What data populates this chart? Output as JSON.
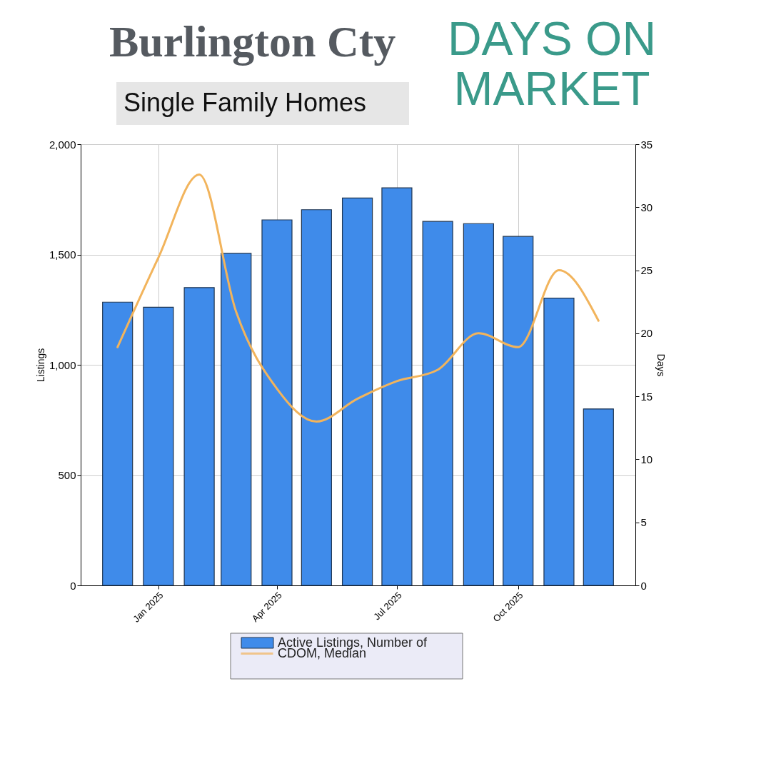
{
  "chart_data": {
    "type": "bar",
    "title": "Burlington Cty",
    "subtitle": "Single Family Homes",
    "annotations": [
      "DAYS ON MARKET"
    ],
    "x": [
      "2024-12",
      "2025-01",
      "2025-02",
      "2025-03",
      "2025-04",
      "2025-05",
      "2025-06",
      "2025-07",
      "2025-08",
      "2025-09",
      "2025-10",
      "2025-11",
      "2025-12"
    ],
    "series": [
      {
        "name": "Active Listings, Number of",
        "type": "bar",
        "color": "#3f8bea",
        "values": [
          1284,
          1261,
          1350,
          1505,
          1657,
          1703,
          1756,
          1802,
          1650,
          1640,
          1582,
          1302,
          800
        ]
      },
      {
        "name": "CDOM, Median",
        "type": "line",
        "axis": "y2",
        "color": "#f2b45c",
        "values": [
          18.9,
          26.0,
          32.6,
          21.7,
          15.6,
          13.0,
          14.8,
          16.2,
          17.1,
          20.0,
          18.9,
          25.0,
          21.0
        ]
      }
    ],
    "xlim": [
      "2024-11-03",
      "2025-12-29"
    ],
    "xticks": [
      {
        "value": "2025-01",
        "label": "Jan 2025"
      },
      {
        "value": "2025-04",
        "label": "Apr 2025"
      },
      {
        "value": "2025-07",
        "label": "Jul 2025"
      },
      {
        "value": "2025-10",
        "label": "Oct 2025"
      }
    ],
    "ylabel": "Listings",
    "ylim": [
      0,
      2000
    ],
    "yticks": [
      0,
      {
        "value": 500,
        "label": "500"
      },
      {
        "value": 1000,
        "label": "1,000"
      },
      {
        "value": 1500,
        "label": "1,500"
      },
      {
        "value": 2000,
        "label": "2,000"
      }
    ],
    "y2label": "Days",
    "y2lim": [
      0,
      35
    ],
    "y2ticks": [
      0,
      5,
      10,
      15,
      20,
      25,
      30,
      35
    ],
    "grid": true,
    "legend": "bottom"
  }
}
